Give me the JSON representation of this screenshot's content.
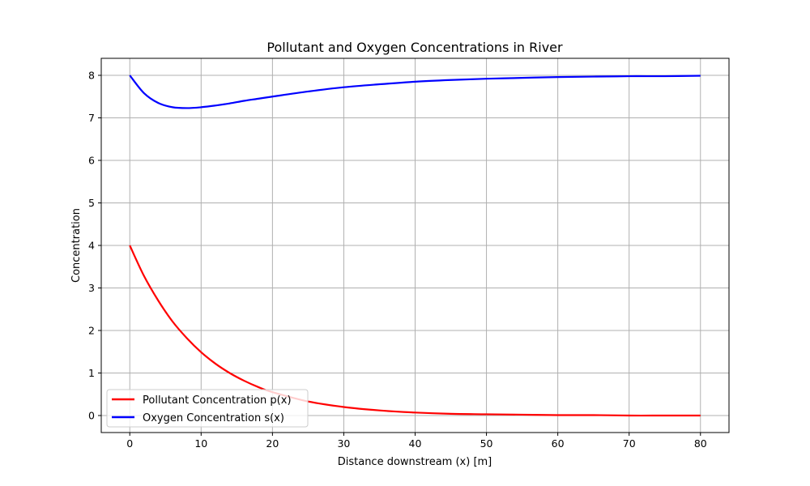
{
  "chart_data": {
    "type": "line",
    "title": "Pollutant and Oxygen Concentrations in River",
    "xlabel": "Distance downstream (x) [m]",
    "ylabel": "Concentration",
    "xlim": [
      -4,
      84
    ],
    "ylim": [
      -0.4,
      8.4
    ],
    "xticks": [
      0,
      10,
      20,
      30,
      40,
      50,
      60,
      70,
      80
    ],
    "yticks": [
      0,
      1,
      2,
      3,
      4,
      5,
      6,
      7,
      8
    ],
    "grid": true,
    "legend_position": "lower-left",
    "x": [
      0,
      2,
      4,
      6,
      8,
      10,
      12,
      14,
      16,
      18,
      20,
      25,
      30,
      35,
      40,
      45,
      50,
      55,
      60,
      65,
      70,
      75,
      80
    ],
    "series": [
      {
        "name": "Pollutant Concentration p(x)",
        "color": "#ff0000",
        "values": [
          4.0,
          3.28,
          2.7,
          2.21,
          1.82,
          1.49,
          1.22,
          1.0,
          0.82,
          0.67,
          0.55,
          0.33,
          0.2,
          0.12,
          0.07,
          0.04,
          0.03,
          0.02,
          0.01,
          0.01,
          0.0,
          0.0,
          0.0
        ]
      },
      {
        "name": "Oxygen Concentration s(x)",
        "color": "#0000ff",
        "values": [
          8.0,
          7.58,
          7.35,
          7.25,
          7.23,
          7.25,
          7.29,
          7.34,
          7.4,
          7.45,
          7.5,
          7.62,
          7.72,
          7.79,
          7.85,
          7.89,
          7.92,
          7.94,
          7.96,
          7.97,
          7.98,
          7.98,
          7.99
        ]
      }
    ]
  }
}
